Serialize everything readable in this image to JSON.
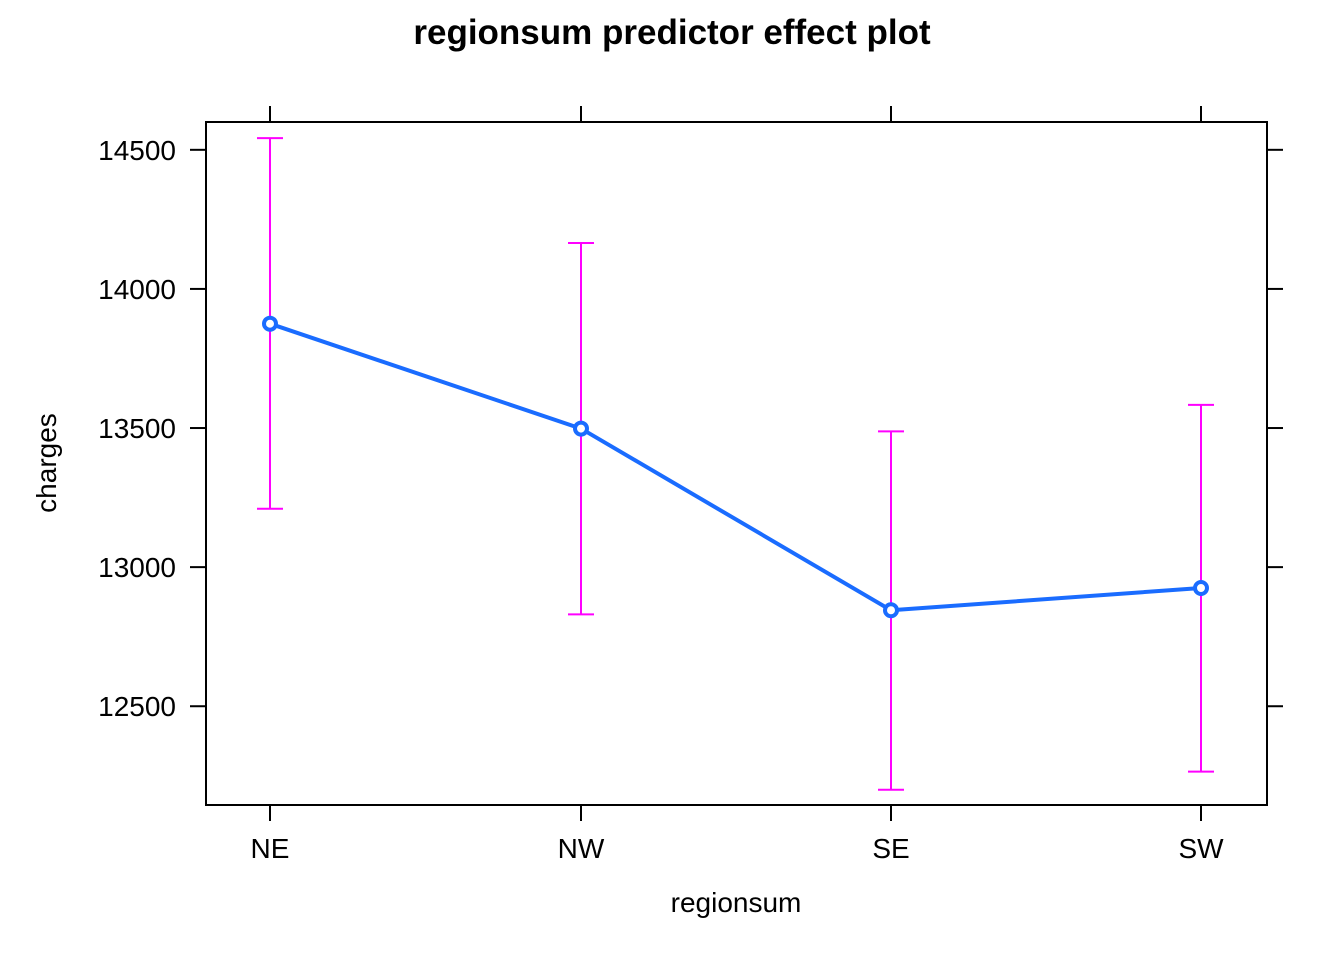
{
  "chart_data": {
    "type": "line",
    "title": "regionsum predictor effect plot",
    "xlabel": "regionsum",
    "ylabel": "charges",
    "categories": [
      "NE",
      "NW",
      "SE",
      "SW"
    ],
    "y_ticks": [
      12500,
      13000,
      13500,
      14000,
      14500
    ],
    "ylim": [
      12145,
      14600
    ],
    "series": [
      {
        "values": [
          13875,
          13498,
          12845,
          12925
        ],
        "lower": [
          13210,
          12830,
          12200,
          12265
        ],
        "upper": [
          14542,
          14165,
          13488,
          13583
        ],
        "color": "#1a6cff",
        "error_bar_color": "#ff00ff"
      }
    ],
    "grid": false,
    "legend": "none"
  }
}
